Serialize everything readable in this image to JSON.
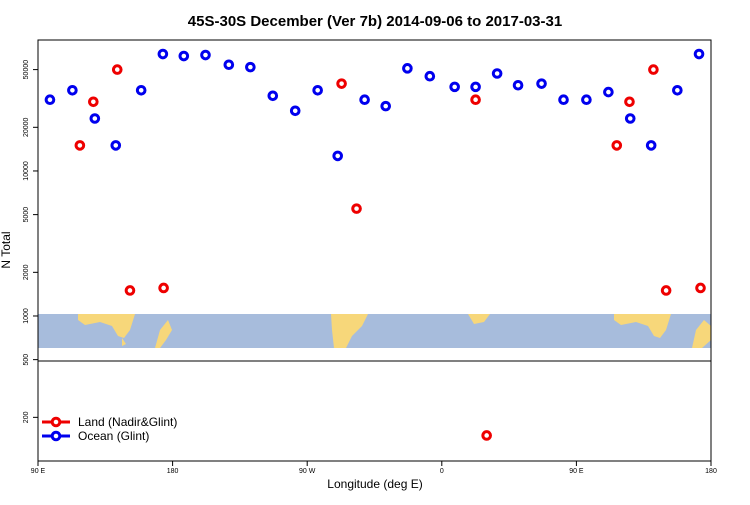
{
  "chart_data": {
    "type": "scatter",
    "title": "45S-30S December (Ver 7b)   2014-09-06 to 2017-03-31",
    "xlabel": "Longitude (deg E)",
    "ylabel": "N Total",
    "log_y": true,
    "xlim": [
      90,
      540
    ],
    "ylim": [
      100,
      80000
    ],
    "xticks": [
      {
        "value": 90,
        "label": "90 E"
      },
      180,
      {
        "value": 270,
        "label": "90 W"
      },
      {
        "value": 360,
        "label": "0"
      },
      {
        "value": 450,
        "label": "90 E"
      },
      {
        "value": 540,
        "label": "180"
      }
    ],
    "yticks": [
      200,
      500,
      1000,
      2000,
      5000,
      10000,
      20000,
      50000
    ],
    "legend": "bottom-left",
    "series": [
      {
        "name": "Land (Nadir&Glint)",
        "color": "#ee0000",
        "x": [
          118,
          127,
          143,
          151.5,
          174,
          293,
          303,
          382.6,
          390,
          477,
          485.5,
          501.5,
          510,
          533
        ],
        "values": [
          15000,
          30000,
          50000,
          1500,
          1560,
          40000,
          5500,
          31000,
          150,
          15000,
          30000,
          50000,
          1500,
          1560
        ]
      },
      {
        "name": "Ocean (Glint)",
        "color": "#0000ee",
        "x": [
          98,
          113,
          128,
          142,
          159,
          173.5,
          187.5,
          202,
          217.6,
          232,
          247,
          262,
          277,
          290.4,
          308.4,
          322.5,
          337,
          352,
          368.6,
          382.6,
          397,
          411,
          426.7,
          441.4,
          456.7,
          471.4,
          486,
          500,
          517.5,
          532
        ],
        "values": [
          31000,
          36000,
          23000,
          15000,
          36000,
          64000,
          62000,
          63000,
          54000,
          52000,
          33000,
          26000,
          36000,
          12700,
          31000,
          28000,
          51000,
          45000,
          38000,
          38000,
          47000,
          39000,
          40000,
          31000,
          31000,
          35000,
          23000,
          15000,
          36000,
          64000
        ]
      }
    ]
  }
}
